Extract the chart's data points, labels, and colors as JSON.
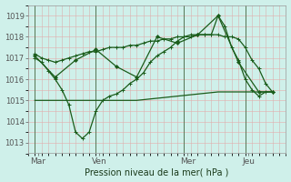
{
  "xlabel": "Pression niveau de la mer( hPa )",
  "bg_color": "#cff0ea",
  "grid_color_h": "#e8aaaa",
  "grid_color_v": "#d8b0b0",
  "line_color": "#1a5c1a",
  "ylim": [
    1012.5,
    1019.5
  ],
  "yticks": [
    1013,
    1014,
    1015,
    1016,
    1017,
    1018,
    1019
  ],
  "day_positions": [
    0.5,
    9.5,
    22.5,
    31.5
  ],
  "day_labels": [
    "Mar",
    "Ven",
    "Mer",
    "Jeu"
  ],
  "xlim": [
    -1,
    37
  ],
  "series1_x": [
    0,
    1,
    2,
    3,
    4,
    5,
    6,
    7,
    8,
    9,
    10,
    11,
    12,
    13,
    14,
    15,
    16,
    17,
    18,
    19,
    20,
    21,
    22,
    23,
    24,
    25,
    26,
    27,
    28,
    29,
    30,
    31,
    32,
    33,
    34,
    35
  ],
  "series1_y": [
    1017.2,
    1017.0,
    1016.9,
    1016.8,
    1016.9,
    1017.0,
    1017.1,
    1017.2,
    1017.3,
    1017.3,
    1017.4,
    1017.5,
    1017.5,
    1017.5,
    1017.6,
    1017.6,
    1017.7,
    1017.8,
    1017.8,
    1017.9,
    1017.9,
    1018.0,
    1018.0,
    1018.1,
    1018.1,
    1018.1,
    1018.1,
    1018.1,
    1018.0,
    1018.0,
    1017.9,
    1017.5,
    1016.9,
    1016.5,
    1015.8,
    1015.4
  ],
  "series2_x": [
    0,
    1,
    2,
    3,
    4,
    5,
    6,
    7,
    8,
    9,
    10,
    11,
    12,
    13,
    14,
    15,
    16,
    17,
    18,
    19,
    20,
    21,
    22,
    23,
    24,
    25,
    26,
    27,
    28,
    29,
    30,
    31,
    32,
    33,
    34,
    35
  ],
  "series2_y": [
    1017.0,
    1016.8,
    1016.4,
    1016.0,
    1015.5,
    1014.8,
    1013.5,
    1013.2,
    1013.5,
    1014.5,
    1015.0,
    1015.2,
    1015.3,
    1015.5,
    1015.8,
    1016.0,
    1016.3,
    1016.8,
    1017.1,
    1017.3,
    1017.5,
    1017.8,
    1018.0,
    1018.0,
    1018.1,
    1018.1,
    1018.1,
    1019.0,
    1018.5,
    1017.5,
    1016.9,
    1016.0,
    1015.5,
    1015.2,
    1015.4,
    1015.4
  ],
  "series3_x": [
    0,
    3,
    6,
    9,
    12,
    15,
    18,
    21,
    24,
    27,
    30,
    33,
    35
  ],
  "series3_y": [
    1017.1,
    1016.1,
    1016.9,
    1017.4,
    1016.6,
    1016.1,
    1018.0,
    1017.7,
    1018.1,
    1019.0,
    1016.8,
    1015.4,
    1015.4
  ],
  "series4_x": [
    0,
    3,
    6,
    9,
    12,
    15,
    18,
    21,
    24,
    27,
    30,
    33,
    35
  ],
  "series4_y": [
    1015.0,
    1015.0,
    1015.0,
    1015.0,
    1015.0,
    1015.0,
    1015.1,
    1015.2,
    1015.3,
    1015.4,
    1015.4,
    1015.4,
    1015.4
  ],
  "vline_positions": [
    0,
    9,
    22,
    31
  ]
}
